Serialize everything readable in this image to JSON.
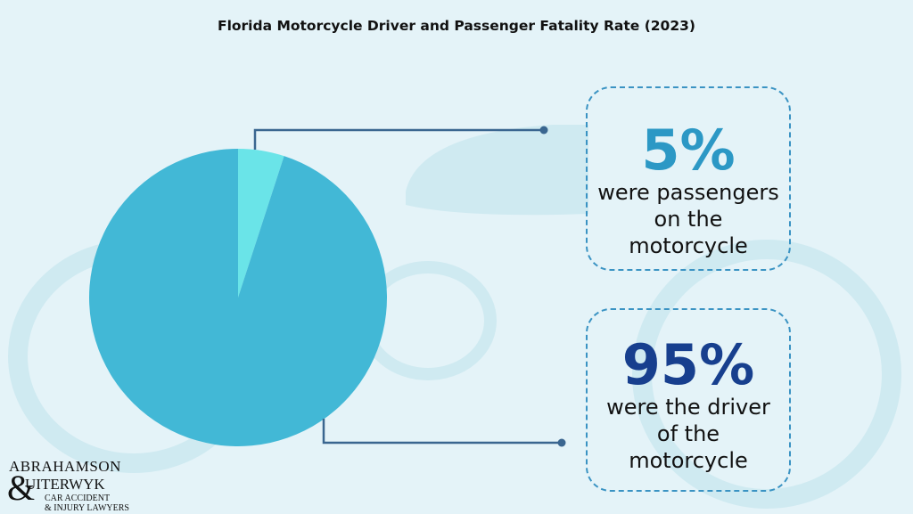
{
  "title": "Florida Motorcycle Driver and Passenger Fatality Rate (2023)",
  "chart_data": {
    "type": "pie",
    "title": "Florida Motorcycle Driver and Passenger Fatality Rate (2023)",
    "slices": [
      {
        "label": "were passengers on the motorcycle",
        "value": 5,
        "color": "#6ae4e8"
      },
      {
        "label": "were the driver of the motorcycle",
        "value": 95,
        "color": "#42b8d6"
      }
    ]
  },
  "callouts": [
    {
      "value": "5%",
      "text": "were passengers on the motorcycle",
      "color": "#2c98c5"
    },
    {
      "value": "95%",
      "text": "were the driver of the motorcycle",
      "color": "#173f8e"
    }
  ],
  "logo": {
    "line1": "ABRAHAMSON",
    "ampersand": "&",
    "line2": "UITERWYK",
    "line3": "CAR ACCIDENT",
    "line4": "& INJURY LAWYERS"
  },
  "colors": {
    "background": "#e4f3f8",
    "connector": "#3a6690",
    "box_border": "#3a93c3"
  }
}
